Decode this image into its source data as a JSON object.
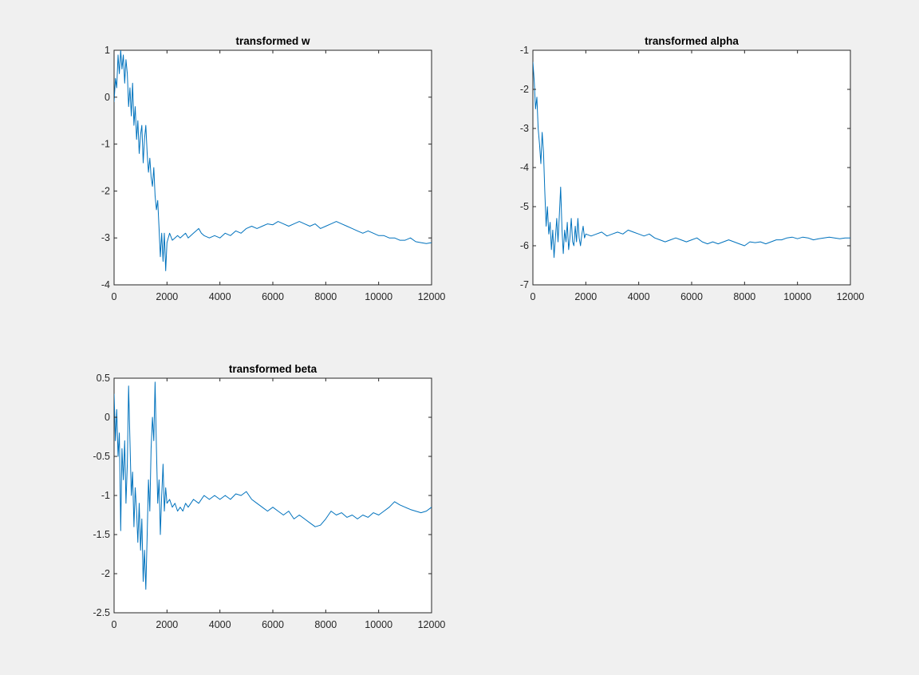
{
  "figure": {
    "background": "#f0f0f0",
    "line_color": "#0072bd"
  },
  "chart_data": [
    {
      "type": "line",
      "title": "transformed w",
      "xlabel": "",
      "ylabel": "",
      "xlim": [
        0,
        12000
      ],
      "ylim": [
        -4,
        1
      ],
      "xticks": [
        0,
        2000,
        4000,
        6000,
        8000,
        10000,
        12000
      ],
      "yticks": [
        -4,
        -3,
        -2,
        -1,
        0,
        1
      ],
      "grid": false,
      "series": [
        {
          "x": [
            0,
            50,
            100,
            150,
            200,
            250,
            300,
            350,
            400,
            450,
            500,
            550,
            600,
            650,
            700,
            750,
            800,
            850,
            900,
            950,
            1000,
            1050,
            1100,
            1150,
            1200,
            1250,
            1300,
            1350,
            1400,
            1450,
            1500,
            1550,
            1600,
            1650,
            1700,
            1750,
            1800,
            1850,
            1900,
            1950,
            2000,
            2100,
            2200,
            2300,
            2400,
            2500,
            2600,
            2700,
            2800,
            2900,
            3000,
            3100,
            3200,
            3300,
            3400,
            3600,
            3800,
            4000,
            4200,
            4400,
            4600,
            4800,
            5000,
            5200,
            5400,
            5600,
            5800,
            6000,
            6200,
            6400,
            6600,
            6800,
            7000,
            7200,
            7400,
            7600,
            7800,
            8000,
            8200,
            8400,
            8600,
            8800,
            9000,
            9200,
            9400,
            9600,
            9800,
            10000,
            10200,
            10400,
            10600,
            10800,
            11000,
            11200,
            11400,
            11600,
            11800,
            12000
          ],
          "y": [
            -0.1,
            0.4,
            0.2,
            0.9,
            0.5,
            1.0,
            0.6,
            0.9,
            0.3,
            0.8,
            0.5,
            -0.2,
            0.2,
            -0.4,
            0.3,
            -0.6,
            -0.2,
            -0.9,
            -0.5,
            -1.2,
            -0.8,
            -0.6,
            -1.4,
            -0.9,
            -0.6,
            -1.2,
            -1.6,
            -1.3,
            -1.7,
            -1.9,
            -1.5,
            -2.1,
            -2.4,
            -2.2,
            -2.8,
            -3.4,
            -2.9,
            -3.5,
            -2.9,
            -3.7,
            -3.1,
            -2.9,
            -3.05,
            -3.0,
            -2.95,
            -3.0,
            -2.95,
            -2.9,
            -3.0,
            -2.95,
            -2.9,
            -2.85,
            -2.8,
            -2.9,
            -2.95,
            -3.0,
            -2.95,
            -3.0,
            -2.9,
            -2.95,
            -2.85,
            -2.9,
            -2.8,
            -2.75,
            -2.8,
            -2.75,
            -2.7,
            -2.72,
            -2.65,
            -2.7,
            -2.75,
            -2.7,
            -2.65,
            -2.7,
            -2.75,
            -2.7,
            -2.8,
            -2.75,
            -2.7,
            -2.65,
            -2.7,
            -2.75,
            -2.8,
            -2.85,
            -2.9,
            -2.85,
            -2.9,
            -2.95,
            -2.95,
            -3.0,
            -3.0,
            -3.05,
            -3.05,
            -3.0,
            -3.08,
            -3.1,
            -3.12,
            -3.1
          ]
        }
      ]
    },
    {
      "type": "line",
      "title": "transformed alpha",
      "xlabel": "",
      "ylabel": "",
      "xlim": [
        0,
        12000
      ],
      "ylim": [
        -7,
        -1
      ],
      "xticks": [
        0,
        2000,
        4000,
        6000,
        8000,
        10000,
        12000
      ],
      "yticks": [
        -7,
        -6,
        -5,
        -4,
        -3,
        -2,
        -1
      ],
      "grid": false,
      "series": [
        {
          "x": [
            0,
            50,
            100,
            150,
            200,
            250,
            300,
            350,
            400,
            450,
            500,
            550,
            600,
            650,
            700,
            750,
            800,
            850,
            900,
            950,
            1000,
            1050,
            1100,
            1150,
            1200,
            1250,
            1300,
            1350,
            1400,
            1450,
            1500,
            1550,
            1600,
            1650,
            1700,
            1750,
            1800,
            1850,
            1900,
            1950,
            2000,
            2200,
            2400,
            2600,
            2800,
            3000,
            3200,
            3400,
            3600,
            3800,
            4000,
            4200,
            4400,
            4600,
            4800,
            5000,
            5200,
            5400,
            5600,
            5800,
            6000,
            6200,
            6400,
            6600,
            6800,
            7000,
            7200,
            7400,
            7600,
            7800,
            8000,
            8200,
            8400,
            8600,
            8800,
            9000,
            9200,
            9400,
            9600,
            9800,
            10000,
            10200,
            10400,
            10600,
            10800,
            11000,
            11200,
            11400,
            11600,
            11800,
            12000
          ],
          "y": [
            -1.3,
            -1.8,
            -2.5,
            -2.2,
            -3.0,
            -3.4,
            -3.9,
            -3.1,
            -3.6,
            -4.6,
            -5.5,
            -5.0,
            -5.7,
            -5.4,
            -6.1,
            -5.6,
            -6.3,
            -5.8,
            -5.3,
            -5.9,
            -5.2,
            -4.5,
            -5.6,
            -6.2,
            -5.6,
            -5.9,
            -5.4,
            -6.1,
            -5.8,
            -5.3,
            -5.9,
            -6.0,
            -5.5,
            -5.9,
            -5.3,
            -5.8,
            -6.0,
            -5.7,
            -5.5,
            -5.8,
            -5.7,
            -5.75,
            -5.7,
            -5.65,
            -5.75,
            -5.7,
            -5.65,
            -5.7,
            -5.6,
            -5.65,
            -5.7,
            -5.75,
            -5.7,
            -5.8,
            -5.85,
            -5.9,
            -5.85,
            -5.8,
            -5.85,
            -5.9,
            -5.85,
            -5.8,
            -5.9,
            -5.95,
            -5.9,
            -5.95,
            -5.9,
            -5.85,
            -5.9,
            -5.95,
            -6.0,
            -5.9,
            -5.92,
            -5.9,
            -5.95,
            -5.9,
            -5.85,
            -5.85,
            -5.8,
            -5.78,
            -5.82,
            -5.78,
            -5.8,
            -5.85,
            -5.82,
            -5.8,
            -5.78,
            -5.8,
            -5.82,
            -5.8,
            -5.8
          ]
        }
      ]
    },
    {
      "type": "line",
      "title": "transformed beta",
      "xlabel": "",
      "ylabel": "",
      "xlim": [
        0,
        12000
      ],
      "ylim": [
        -2.5,
        0.5
      ],
      "xticks": [
        0,
        2000,
        4000,
        6000,
        8000,
        10000,
        12000
      ],
      "yticks": [
        -2.5,
        -2,
        -1.5,
        -1,
        -0.5,
        0,
        0.5
      ],
      "grid": false,
      "series": [
        {
          "x": [
            0,
            50,
            100,
            150,
            200,
            250,
            300,
            350,
            400,
            450,
            500,
            550,
            600,
            650,
            700,
            750,
            800,
            850,
            900,
            950,
            1000,
            1050,
            1100,
            1150,
            1200,
            1250,
            1300,
            1350,
            1400,
            1450,
            1500,
            1550,
            1600,
            1650,
            1700,
            1750,
            1800,
            1850,
            1900,
            1950,
            2000,
            2100,
            2200,
            2300,
            2400,
            2500,
            2600,
            2700,
            2800,
            2900,
            3000,
            3200,
            3400,
            3600,
            3800,
            4000,
            4200,
            4400,
            4600,
            4800,
            5000,
            5200,
            5400,
            5600,
            5800,
            6000,
            6200,
            6400,
            6600,
            6800,
            7000,
            7200,
            7400,
            7600,
            7800,
            8000,
            8200,
            8400,
            8600,
            8800,
            9000,
            9200,
            9400,
            9600,
            9800,
            10000,
            10200,
            10400,
            10600,
            10800,
            11000,
            11200,
            11400,
            11600,
            11800,
            12000
          ],
          "y": [
            0.3,
            -0.3,
            0.1,
            -0.5,
            -0.2,
            -1.45,
            -0.4,
            -0.8,
            -0.3,
            -1.1,
            -0.6,
            0.4,
            -0.3,
            -1.0,
            -0.7,
            -1.4,
            -0.9,
            -1.2,
            -1.6,
            -1.1,
            -1.7,
            -1.3,
            -2.1,
            -1.7,
            -2.2,
            -1.5,
            -0.8,
            -1.2,
            -0.4,
            0.0,
            -0.3,
            0.45,
            -0.4,
            -1.1,
            -0.8,
            -1.5,
            -1.0,
            -0.6,
            -1.2,
            -0.9,
            -1.1,
            -1.05,
            -1.15,
            -1.1,
            -1.2,
            -1.15,
            -1.2,
            -1.1,
            -1.15,
            -1.1,
            -1.05,
            -1.1,
            -1.0,
            -1.05,
            -1.0,
            -1.05,
            -1.0,
            -1.05,
            -0.98,
            -1.0,
            -0.95,
            -1.05,
            -1.1,
            -1.15,
            -1.2,
            -1.15,
            -1.2,
            -1.25,
            -1.2,
            -1.3,
            -1.25,
            -1.3,
            -1.35,
            -1.4,
            -1.38,
            -1.3,
            -1.2,
            -1.25,
            -1.22,
            -1.28,
            -1.25,
            -1.3,
            -1.25,
            -1.28,
            -1.22,
            -1.25,
            -1.2,
            -1.15,
            -1.08,
            -1.12,
            -1.15,
            -1.18,
            -1.2,
            -1.22,
            -1.2,
            -1.15
          ]
        }
      ]
    }
  ]
}
